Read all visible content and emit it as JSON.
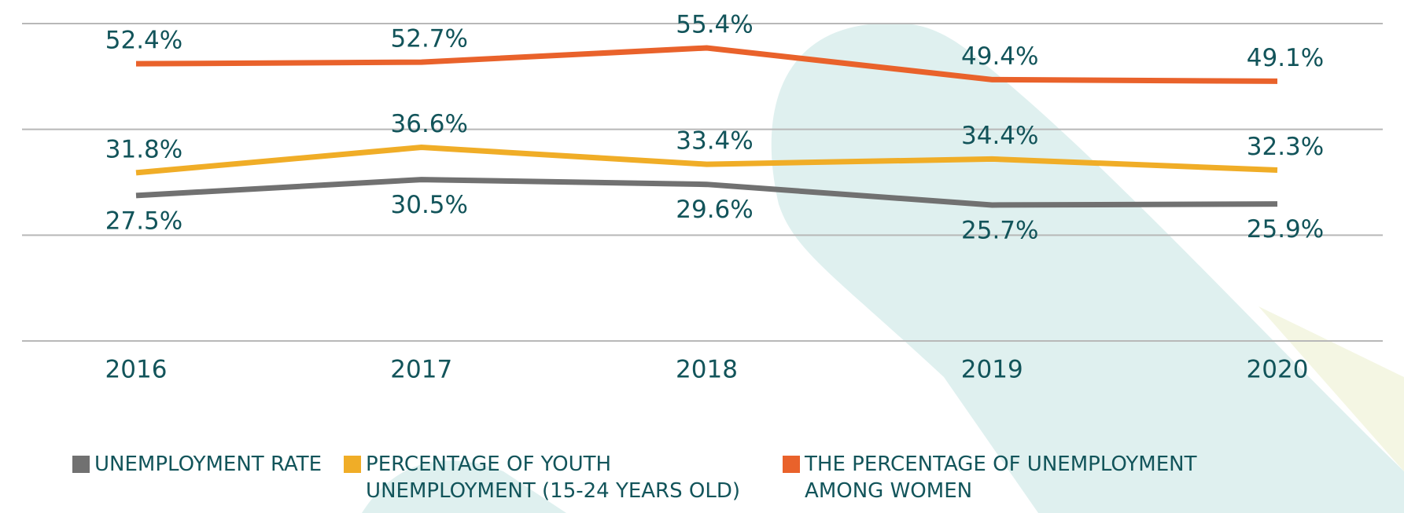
{
  "chart_data": {
    "type": "line",
    "categories": [
      "2016",
      "2017",
      "2018",
      "2019",
      "2020"
    ],
    "series": [
      {
        "name": "UNEMPLOYMENT RATE",
        "color": "#717171",
        "values": [
          27.5,
          30.5,
          29.6,
          25.7,
          25.9
        ],
        "value_labels": [
          "27.5%",
          "30.5%",
          "29.6%",
          "25.7%",
          "25.9%"
        ]
      },
      {
        "name": "PERCENTAGE OF YOUTH UNEMPLOYMENT (15-24 YEARS OLD)",
        "color": "#f0ad27",
        "values": [
          31.8,
          36.6,
          33.4,
          34.4,
          32.3
        ],
        "value_labels": [
          "31.8%",
          "36.6%",
          "33.4%",
          "34.4%",
          "32.3%"
        ]
      },
      {
        "name": "THE PERCENTAGE OF UNEMPLOYMENT AMONG WOMEN",
        "color": "#e9622b",
        "values": [
          52.4,
          52.7,
          55.4,
          49.4,
          49.1
        ],
        "value_labels": [
          "52.4%",
          "52.7%",
          "55.4%",
          "49.4%",
          "49.1%"
        ]
      }
    ],
    "ylim": [
      0,
      60
    ],
    "yticks": [
      0,
      20,
      40,
      60
    ],
    "grid": true
  }
}
